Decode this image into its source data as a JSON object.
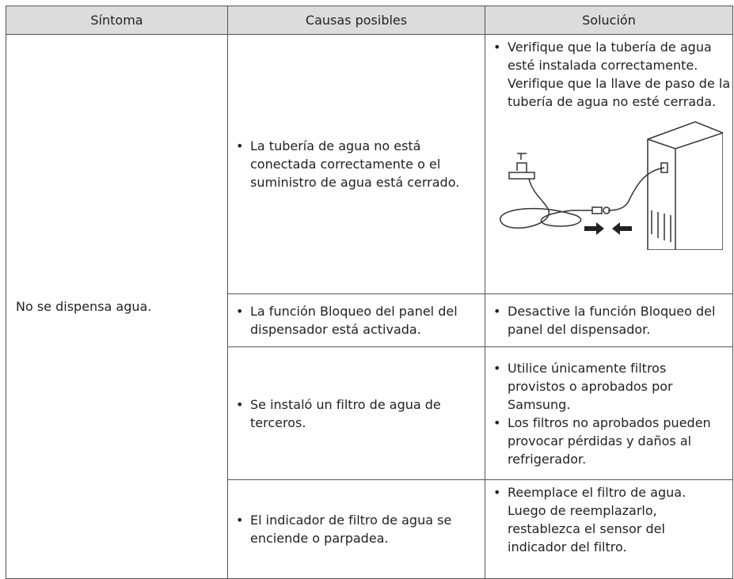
{
  "table": {
    "header": [
      "Síntoma",
      "Causas posibles",
      "Solución"
    ],
    "symptom": "No se dispensa agua.",
    "rows": [
      {
        "cause": "La tubería de agua no está conectada correctamente o el suministro de agua está cerrado.",
        "solution": [
          "Verifique que la tubería de agua esté instalada correctamente. Verifique que la llave de paso de la tubería de agua no esté cerrada."
        ]
      },
      {
        "cause": "La función Bloqueo del panel del dispensador está activada.",
        "solution": [
          "Desactive la función Bloqueo del panel del dispensador."
        ]
      },
      {
        "cause": "Se instaló un filtro de agua de terceros.",
        "solution": [
          "Utilice únicamente filtros provistos o aprobados por Samsung.",
          "Los filtros no aprobados pueden provocar pérdidas y daños al refrigerador."
        ]
      },
      {
        "cause": "El indicador de filtro de agua se enciende o parpadea.",
        "solution": [
          "Reemplace el filtro de agua. Luego de reemplazarlo, restablezca el sensor del indicador del filtro."
        ]
      }
    ]
  }
}
